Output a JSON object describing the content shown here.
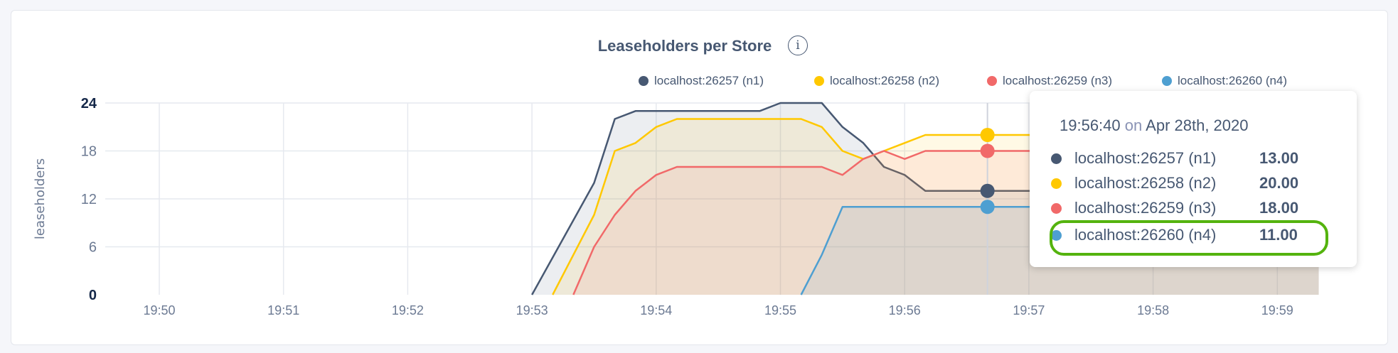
{
  "chart_data": {
    "type": "area",
    "title": "Leaseholders per Store",
    "ylabel": "leaseholders",
    "xlabel": "",
    "ylim": [
      0,
      24
    ],
    "yticks": [
      "0",
      "6",
      "12",
      "18",
      "24"
    ],
    "xticks": [
      "19:50",
      "19:51",
      "19:52",
      "19:53",
      "19:54",
      "19:55",
      "19:56",
      "19:57",
      "19:58",
      "19:59"
    ],
    "xrange": [
      "19:49:30",
      "19:59:20"
    ],
    "grid": true,
    "legend_position": "top-right",
    "series": [
      {
        "name": "localhost:26257 (n1)",
        "color": "#475872",
        "x": [
          "19:53:00",
          "19:53:30",
          "19:53:40",
          "19:53:50",
          "19:54:50",
          "19:55:00",
          "19:55:20",
          "19:55:30",
          "19:55:40",
          "19:55:50",
          "19:56:00",
          "19:56:10",
          "19:59:20"
        ],
        "y": [
          0,
          14,
          22,
          23,
          23,
          24,
          24,
          21,
          19,
          16,
          15,
          13,
          13
        ]
      },
      {
        "name": "localhost:26258 (n2)",
        "color": "#ffc800",
        "x": [
          "19:53:10",
          "19:53:30",
          "19:53:40",
          "19:53:50",
          "19:54:00",
          "19:54:10",
          "19:55:10",
          "19:55:20",
          "19:55:30",
          "19:55:40",
          "19:55:50",
          "19:56:00",
          "19:56:10",
          "19:59:20"
        ],
        "y": [
          0,
          10,
          18,
          19,
          21,
          22,
          22,
          21,
          18,
          17,
          18,
          19,
          20,
          20
        ]
      },
      {
        "name": "localhost:26259 (n3)",
        "color": "#f16969",
        "x": [
          "19:53:20",
          "19:53:30",
          "19:53:40",
          "19:53:50",
          "19:54:00",
          "19:54:10",
          "19:55:20",
          "19:55:30",
          "19:55:40",
          "19:55:50",
          "19:56:00",
          "19:56:10",
          "19:59:20"
        ],
        "y": [
          0,
          6,
          10,
          13,
          15,
          16,
          16,
          15,
          17,
          18,
          17,
          18,
          18
        ]
      },
      {
        "name": "localhost:26260 (n4)",
        "color": "#4e9fd1",
        "x": [
          "19:55:10",
          "19:55:20",
          "19:55:30",
          "19:59:20"
        ],
        "y": [
          0,
          5,
          11,
          11
        ]
      }
    ]
  },
  "info_icon": "info-icon",
  "info_label": "i",
  "tooltip": {
    "time": "19:56:40",
    "on": "on",
    "date": "Apr 28th, 2020",
    "hover_x": "19:56:40",
    "highlight_color": "#54b30e",
    "rows": [
      {
        "label": "localhost:26257 (n1)",
        "value": "13.00",
        "color": "#475872"
      },
      {
        "label": "localhost:26258 (n2)",
        "value": "20.00",
        "color": "#ffc800"
      },
      {
        "label": "localhost:26259 (n3)",
        "value": "18.00",
        "color": "#f16969"
      },
      {
        "label": "localhost:26260 (n4)",
        "value": "11.00",
        "color": "#4e9fd1"
      }
    ]
  }
}
